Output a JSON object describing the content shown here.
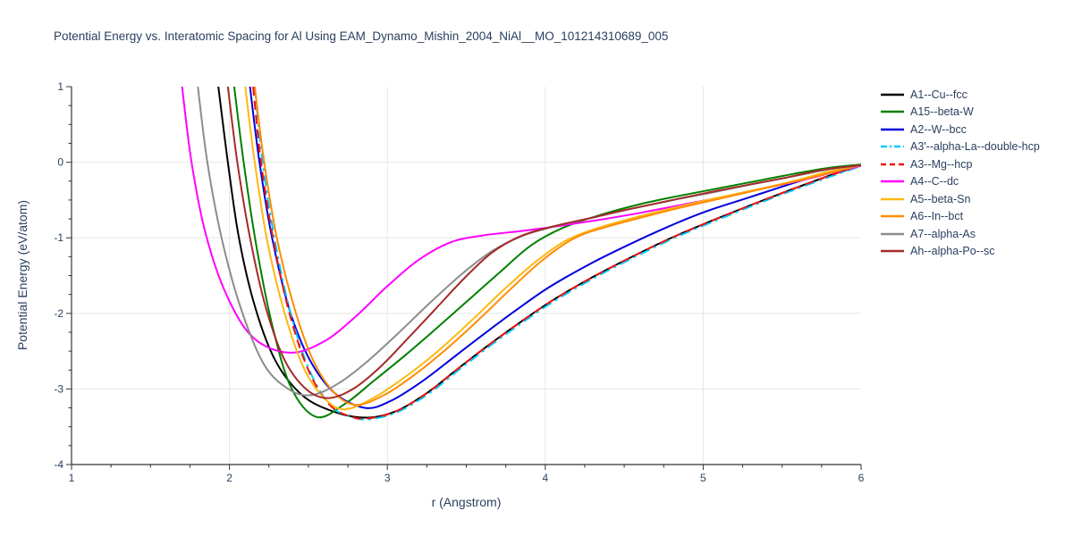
{
  "page": {
    "background": "#ffffff",
    "text_color": "#2a3f5f",
    "grid_color": "#e6e6e6",
    "axis_color": "#333333"
  },
  "chart_data": {
    "type": "line",
    "title": "Potential Energy vs. Interatomic Spacing for Al Using EAM_Dynamo_Mishin_2004_NiAl__MO_101214310689_005",
    "xlabel": "r (Angstrom)",
    "ylabel": "Potential Energy (eV/atom)",
    "xlim": [
      1,
      6
    ],
    "ylim": [
      -4,
      1
    ],
    "xticks": [
      1,
      2,
      3,
      4,
      5,
      6
    ],
    "yticks": [
      -4,
      -3,
      -2,
      -1,
      0,
      1
    ],
    "minor_tick_step": 0.25,
    "grid": true,
    "legend_position": "right",
    "series": [
      {
        "name": "A1--Cu--fcc",
        "color": "#000000",
        "dash": "solid",
        "points": [
          [
            1.93,
            1
          ],
          [
            1.99,
            0
          ],
          [
            2.06,
            -1
          ],
          [
            2.16,
            -1.9
          ],
          [
            2.29,
            -2.62
          ],
          [
            2.46,
            -3.08
          ],
          [
            2.66,
            -3.3
          ],
          [
            2.87,
            -3.38
          ],
          [
            3.06,
            -3.29
          ],
          [
            3.26,
            -3.04
          ],
          [
            3.46,
            -2.71
          ],
          [
            3.66,
            -2.39
          ],
          [
            3.86,
            -2.09
          ],
          [
            4.06,
            -1.81
          ],
          [
            4.31,
            -1.51
          ],
          [
            4.56,
            -1.24
          ],
          [
            4.81,
            -0.99
          ],
          [
            5.06,
            -0.77
          ],
          [
            5.31,
            -0.56
          ],
          [
            5.56,
            -0.36
          ],
          [
            5.81,
            -0.17
          ],
          [
            6,
            -0.04
          ]
        ]
      },
      {
        "name": "A15--beta-W",
        "color": "#008000",
        "dash": "solid",
        "points": [
          [
            2.03,
            1
          ],
          [
            2.09,
            0
          ],
          [
            2.17,
            -1.1
          ],
          [
            2.27,
            -2.15
          ],
          [
            2.39,
            -2.98
          ],
          [
            2.55,
            -3.37
          ],
          [
            2.73,
            -3.2
          ],
          [
            2.91,
            -2.9
          ],
          [
            3.11,
            -2.56
          ],
          [
            3.31,
            -2.2
          ],
          [
            3.51,
            -1.83
          ],
          [
            3.71,
            -1.46
          ],
          [
            3.91,
            -1.1
          ],
          [
            4.11,
            -0.87
          ],
          [
            4.36,
            -0.69
          ],
          [
            4.61,
            -0.55
          ],
          [
            4.86,
            -0.44
          ],
          [
            5.11,
            -0.34
          ],
          [
            5.36,
            -0.24
          ],
          [
            5.61,
            -0.14
          ],
          [
            5.81,
            -0.07
          ],
          [
            6,
            -0.03
          ]
        ]
      },
      {
        "name": "A2--W--bcc",
        "color": "#0000dd",
        "dash": "solid",
        "points": [
          [
            2.13,
            1
          ],
          [
            2.19,
            0
          ],
          [
            2.27,
            -1
          ],
          [
            2.38,
            -1.95
          ],
          [
            2.51,
            -2.62
          ],
          [
            2.67,
            -3.06
          ],
          [
            2.86,
            -3.25
          ],
          [
            3.02,
            -3.16
          ],
          [
            3.22,
            -2.9
          ],
          [
            3.42,
            -2.58
          ],
          [
            3.62,
            -2.26
          ],
          [
            3.82,
            -1.95
          ],
          [
            4.02,
            -1.66
          ],
          [
            4.27,
            -1.36
          ],
          [
            4.52,
            -1.1
          ],
          [
            4.77,
            -0.86
          ],
          [
            5.02,
            -0.65
          ],
          [
            5.27,
            -0.48
          ],
          [
            5.52,
            -0.31
          ],
          [
            5.77,
            -0.15
          ],
          [
            6,
            -0.04
          ]
        ]
      },
      {
        "name": "A3'--alpha-La--double-hcp",
        "color": "#00ccff",
        "dash": "dashdot",
        "points": [
          [
            2.16,
            1
          ],
          [
            2.21,
            0
          ],
          [
            2.29,
            -1.06
          ],
          [
            2.39,
            -2.02
          ],
          [
            2.51,
            -2.77
          ],
          [
            2.64,
            -3.22
          ],
          [
            2.77,
            -3.37
          ],
          [
            2.89,
            -3.4
          ],
          [
            3.07,
            -3.3
          ],
          [
            3.27,
            -3.05
          ],
          [
            3.47,
            -2.72
          ],
          [
            3.67,
            -2.4
          ],
          [
            3.87,
            -2.1
          ],
          [
            4.07,
            -1.82
          ],
          [
            4.32,
            -1.52
          ],
          [
            4.57,
            -1.25
          ],
          [
            4.82,
            -1.0
          ],
          [
            5.07,
            -0.78
          ],
          [
            5.32,
            -0.57
          ],
          [
            5.57,
            -0.37
          ],
          [
            5.82,
            -0.18
          ],
          [
            6,
            -0.05
          ]
        ]
      },
      {
        "name": "A3--Mg--hcp",
        "color": "#ee1111",
        "dash": "dash",
        "points": [
          [
            2.15,
            1
          ],
          [
            2.2,
            0
          ],
          [
            2.28,
            -1.05
          ],
          [
            2.38,
            -2.0
          ],
          [
            2.5,
            -2.75
          ],
          [
            2.63,
            -3.2
          ],
          [
            2.76,
            -3.36
          ],
          [
            2.88,
            -3.39
          ],
          [
            3.06,
            -3.29
          ],
          [
            3.26,
            -3.04
          ],
          [
            3.46,
            -2.71
          ],
          [
            3.66,
            -2.39
          ],
          [
            3.86,
            -2.09
          ],
          [
            4.06,
            -1.81
          ],
          [
            4.31,
            -1.51
          ],
          [
            4.56,
            -1.24
          ],
          [
            4.81,
            -0.99
          ],
          [
            5.06,
            -0.77
          ],
          [
            5.31,
            -0.56
          ],
          [
            5.56,
            -0.36
          ],
          [
            5.81,
            -0.17
          ],
          [
            6,
            -0.04
          ]
        ]
      },
      {
        "name": "A4--C--dc",
        "color": "#ff00ff",
        "dash": "solid",
        "points": [
          [
            1.7,
            1
          ],
          [
            1.76,
            0
          ],
          [
            1.85,
            -0.95
          ],
          [
            1.98,
            -1.75
          ],
          [
            2.15,
            -2.32
          ],
          [
            2.38,
            -2.52
          ],
          [
            2.6,
            -2.37
          ],
          [
            2.8,
            -2.04
          ],
          [
            3.0,
            -1.64
          ],
          [
            3.2,
            -1.29
          ],
          [
            3.4,
            -1.06
          ],
          [
            3.6,
            -0.97
          ],
          [
            3.85,
            -0.91
          ],
          [
            4.1,
            -0.84
          ],
          [
            4.35,
            -0.76
          ],
          [
            4.6,
            -0.67
          ],
          [
            4.85,
            -0.57
          ],
          [
            5.1,
            -0.47
          ],
          [
            5.35,
            -0.36
          ],
          [
            5.6,
            -0.25
          ],
          [
            5.85,
            -0.12
          ],
          [
            6,
            -0.05
          ]
        ]
      },
      {
        "name": "A5--beta-Sn",
        "color": "#fdb813",
        "dash": "solid",
        "points": [
          [
            2.1,
            1
          ],
          [
            2.16,
            0
          ],
          [
            2.24,
            -1.05
          ],
          [
            2.35,
            -2.0
          ],
          [
            2.47,
            -2.72
          ],
          [
            2.6,
            -3.12
          ],
          [
            2.73,
            -3.27
          ],
          [
            2.92,
            -3.11
          ],
          [
            3.12,
            -2.83
          ],
          [
            3.32,
            -2.5
          ],
          [
            3.52,
            -2.12
          ],
          [
            3.72,
            -1.72
          ],
          [
            3.92,
            -1.35
          ],
          [
            4.12,
            -1.05
          ],
          [
            4.32,
            -0.88
          ],
          [
            4.57,
            -0.73
          ],
          [
            4.82,
            -0.6
          ],
          [
            5.07,
            -0.48
          ],
          [
            5.32,
            -0.37
          ],
          [
            5.57,
            -0.25
          ],
          [
            5.82,
            -0.11
          ],
          [
            6,
            -0.04
          ]
        ]
      },
      {
        "name": "A6--In--bct",
        "color": "#ff8c00",
        "dash": "solid",
        "points": [
          [
            2.16,
            1
          ],
          [
            2.22,
            0
          ],
          [
            2.3,
            -1
          ],
          [
            2.41,
            -1.92
          ],
          [
            2.53,
            -2.62
          ],
          [
            2.66,
            -3.04
          ],
          [
            2.8,
            -3.21
          ],
          [
            2.98,
            -3.08
          ],
          [
            3.18,
            -2.8
          ],
          [
            3.38,
            -2.46
          ],
          [
            3.58,
            -2.08
          ],
          [
            3.78,
            -1.68
          ],
          [
            3.98,
            -1.3
          ],
          [
            4.18,
            -1.01
          ],
          [
            4.38,
            -0.86
          ],
          [
            4.63,
            -0.72
          ],
          [
            4.88,
            -0.59
          ],
          [
            5.13,
            -0.47
          ],
          [
            5.38,
            -0.35
          ],
          [
            5.63,
            -0.23
          ],
          [
            5.88,
            -0.1
          ],
          [
            6,
            -0.04
          ]
        ]
      },
      {
        "name": "A7--alpha-As",
        "color": "#8c8c8c",
        "dash": "solid",
        "points": [
          [
            1.8,
            1
          ],
          [
            1.86,
            0
          ],
          [
            1.95,
            -1
          ],
          [
            2.07,
            -1.92
          ],
          [
            2.22,
            -2.68
          ],
          [
            2.38,
            -3.01
          ],
          [
            2.52,
            -3.08
          ],
          [
            2.68,
            -2.94
          ],
          [
            2.86,
            -2.66
          ],
          [
            3.06,
            -2.28
          ],
          [
            3.26,
            -1.88
          ],
          [
            3.46,
            -1.5
          ],
          [
            3.66,
            -1.18
          ],
          [
            3.86,
            -0.97
          ],
          [
            4.06,
            -0.85
          ],
          [
            4.31,
            -0.73
          ],
          [
            4.56,
            -0.61
          ],
          [
            4.81,
            -0.5
          ],
          [
            5.06,
            -0.4
          ],
          [
            5.31,
            -0.29
          ],
          [
            5.56,
            -0.19
          ],
          [
            5.81,
            -0.09
          ],
          [
            6,
            -0.04
          ]
        ]
      },
      {
        "name": "Ah--alpha-Po--sc",
        "color": "#a52a2a",
        "dash": "solid",
        "points": [
          [
            1.99,
            1
          ],
          [
            2.05,
            0
          ],
          [
            2.13,
            -1
          ],
          [
            2.23,
            -1.92
          ],
          [
            2.35,
            -2.62
          ],
          [
            2.49,
            -3.01
          ],
          [
            2.63,
            -3.12
          ],
          [
            2.79,
            -2.99
          ],
          [
            2.96,
            -2.7
          ],
          [
            3.13,
            -2.33
          ],
          [
            3.31,
            -1.93
          ],
          [
            3.49,
            -1.53
          ],
          [
            3.66,
            -1.2
          ],
          [
            3.83,
            -0.99
          ],
          [
            4.01,
            -0.87
          ],
          [
            4.26,
            -0.75
          ],
          [
            4.51,
            -0.63
          ],
          [
            4.76,
            -0.52
          ],
          [
            5.01,
            -0.41
          ],
          [
            5.26,
            -0.31
          ],
          [
            5.51,
            -0.21
          ],
          [
            5.76,
            -0.1
          ],
          [
            6,
            -0.04
          ]
        ]
      }
    ]
  }
}
